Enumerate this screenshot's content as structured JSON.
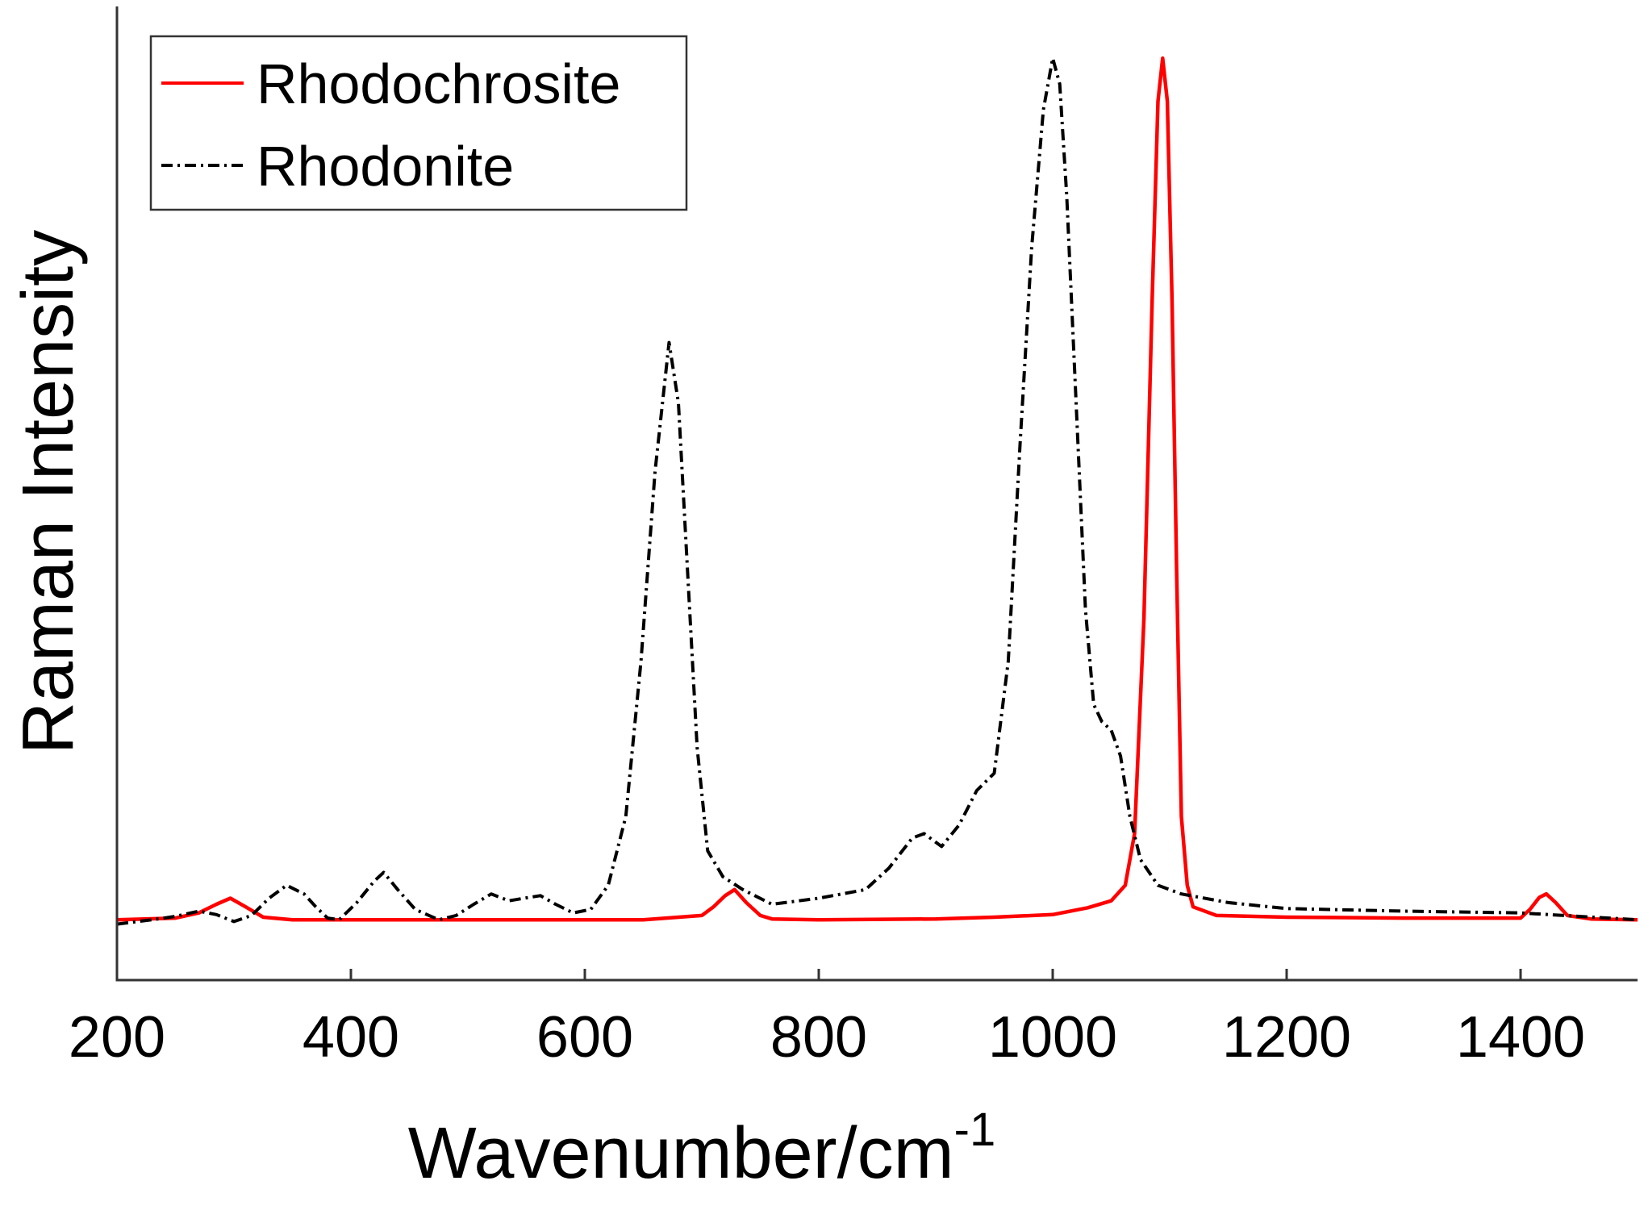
{
  "chart_data": {
    "type": "line",
    "xlabel": "Wavenumber/cm",
    "xlabel_sup": "-1",
    "ylabel": "Raman Intensity",
    "xlim": [
      200,
      1500
    ],
    "ylim": [
      -0.07,
      1.06
    ],
    "x_ticks": [
      200,
      400,
      600,
      800,
      1000,
      1200,
      1400
    ],
    "y_ticks_shown": false,
    "grid": false,
    "legend_position": "top-left",
    "series": [
      {
        "name": "Rhodochrosite",
        "color": "#ff0000",
        "line_style": "solid",
        "points": [
          [
            200,
            0.0
          ],
          [
            250,
            0.002
          ],
          [
            270,
            0.008
          ],
          [
            285,
            0.018
          ],
          [
            297,
            0.025
          ],
          [
            310,
            0.015
          ],
          [
            325,
            0.003
          ],
          [
            350,
            0.0
          ],
          [
            500,
            0.0
          ],
          [
            650,
            0.0
          ],
          [
            700,
            0.005
          ],
          [
            710,
            0.015
          ],
          [
            720,
            0.028
          ],
          [
            728,
            0.035
          ],
          [
            738,
            0.02
          ],
          [
            750,
            0.005
          ],
          [
            760,
            0.001
          ],
          [
            800,
            0.0
          ],
          [
            900,
            0.001
          ],
          [
            950,
            0.003
          ],
          [
            1000,
            0.006
          ],
          [
            1030,
            0.014
          ],
          [
            1050,
            0.022
          ],
          [
            1062,
            0.04
          ],
          [
            1070,
            0.1
          ],
          [
            1078,
            0.35
          ],
          [
            1085,
            0.72
          ],
          [
            1090,
            0.95
          ],
          [
            1094,
            1.0
          ],
          [
            1098,
            0.95
          ],
          [
            1102,
            0.72
          ],
          [
            1106,
            0.4
          ],
          [
            1110,
            0.12
          ],
          [
            1115,
            0.04
          ],
          [
            1120,
            0.015
          ],
          [
            1140,
            0.005
          ],
          [
            1200,
            0.003
          ],
          [
            1300,
            0.002
          ],
          [
            1400,
            0.002
          ],
          [
            1408,
            0.012
          ],
          [
            1416,
            0.026
          ],
          [
            1422,
            0.03
          ],
          [
            1430,
            0.02
          ],
          [
            1440,
            0.005
          ],
          [
            1460,
            0.001
          ],
          [
            1500,
            0.0
          ]
        ]
      },
      {
        "name": "Rhodonite",
        "color": "#000000",
        "line_style": "dash-dot",
        "points": [
          [
            200,
            -0.005
          ],
          [
            230,
            0.0
          ],
          [
            250,
            0.004
          ],
          [
            270,
            0.01
          ],
          [
            285,
            0.006
          ],
          [
            300,
            -0.002
          ],
          [
            315,
            0.005
          ],
          [
            330,
            0.025
          ],
          [
            345,
            0.04
          ],
          [
            360,
            0.03
          ],
          [
            370,
            0.015
          ],
          [
            380,
            0.002
          ],
          [
            390,
            0.0
          ],
          [
            405,
            0.02
          ],
          [
            420,
            0.045
          ],
          [
            428,
            0.055
          ],
          [
            440,
            0.035
          ],
          [
            455,
            0.012
          ],
          [
            475,
            0.0
          ],
          [
            490,
            0.005
          ],
          [
            505,
            0.018
          ],
          [
            520,
            0.03
          ],
          [
            535,
            0.022
          ],
          [
            548,
            0.025
          ],
          [
            562,
            0.028
          ],
          [
            575,
            0.018
          ],
          [
            590,
            0.008
          ],
          [
            605,
            0.012
          ],
          [
            620,
            0.04
          ],
          [
            635,
            0.12
          ],
          [
            648,
            0.3
          ],
          [
            660,
            0.52
          ],
          [
            672,
            0.67
          ],
          [
            680,
            0.6
          ],
          [
            688,
            0.4
          ],
          [
            696,
            0.2
          ],
          [
            705,
            0.08
          ],
          [
            718,
            0.05
          ],
          [
            735,
            0.035
          ],
          [
            760,
            0.018
          ],
          [
            800,
            0.025
          ],
          [
            840,
            0.035
          ],
          [
            860,
            0.06
          ],
          [
            880,
            0.095
          ],
          [
            890,
            0.1
          ],
          [
            905,
            0.085
          ],
          [
            920,
            0.11
          ],
          [
            935,
            0.15
          ],
          [
            950,
            0.17
          ],
          [
            962,
            0.3
          ],
          [
            972,
            0.55
          ],
          [
            982,
            0.78
          ],
          [
            992,
            0.94
          ],
          [
            1000,
            1.0
          ],
          [
            1006,
            0.97
          ],
          [
            1012,
            0.84
          ],
          [
            1020,
            0.6
          ],
          [
            1028,
            0.36
          ],
          [
            1035,
            0.25
          ],
          [
            1042,
            0.23
          ],
          [
            1050,
            0.22
          ],
          [
            1058,
            0.19
          ],
          [
            1066,
            0.12
          ],
          [
            1075,
            0.07
          ],
          [
            1090,
            0.04
          ],
          [
            1110,
            0.03
          ],
          [
            1150,
            0.02
          ],
          [
            1200,
            0.013
          ],
          [
            1300,
            0.01
          ],
          [
            1400,
            0.008
          ],
          [
            1450,
            0.004
          ],
          [
            1500,
            0.0
          ]
        ]
      }
    ]
  }
}
